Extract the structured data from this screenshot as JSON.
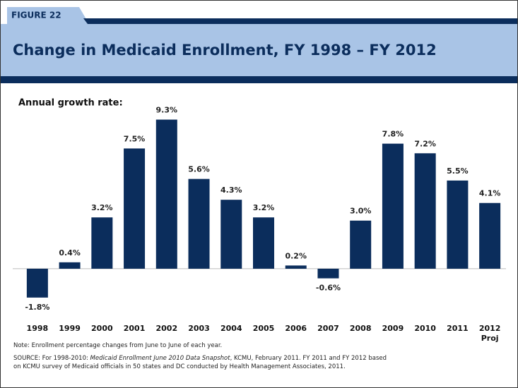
{
  "chart_data": {
    "type": "bar",
    "figure_label": "FIGURE 22",
    "title": "Change in Medicaid Enrollment, FY 1998 – FY 2012",
    "subtitle": "Annual growth rate:",
    "categories": [
      "1998",
      "1999",
      "2000",
      "2001",
      "2002",
      "2003",
      "2004",
      "2005",
      "2006",
      "2007",
      "2008",
      "2009",
      "2010",
      "2011",
      "2012"
    ],
    "projection_label": "Proj",
    "values": [
      -1.8,
      0.4,
      3.2,
      7.5,
      9.3,
      5.6,
      4.3,
      3.2,
      0.2,
      -0.6,
      3.0,
      7.8,
      7.2,
      5.5,
      4.1
    ],
    "value_labels": [
      "-1.8%",
      "0.4%",
      "3.2%",
      "7.5%",
      "9.3%",
      "5.6%",
      "4.3%",
      "3.2%",
      "0.2%",
      "-0.6%",
      "3.0%",
      "7.8%",
      "7.2%",
      "5.5%",
      "4.1%"
    ],
    "color": "#0b2d5c",
    "ylim": [
      -2.6,
      10.6
    ],
    "note": "Note: Enrollment percentage changes from June to June of each year.",
    "source": {
      "prefix": "SOURCE: For 1998-2010: ",
      "title": "Medicaid Enrollment June 2010 Data Snapshot",
      "suffix": ", KCMU, February 2011.  FY 2011 and FY 2012 based on KCMU survey of Medicaid officials in 50 states and DC conducted by Health Management Associates, 2011."
    }
  }
}
